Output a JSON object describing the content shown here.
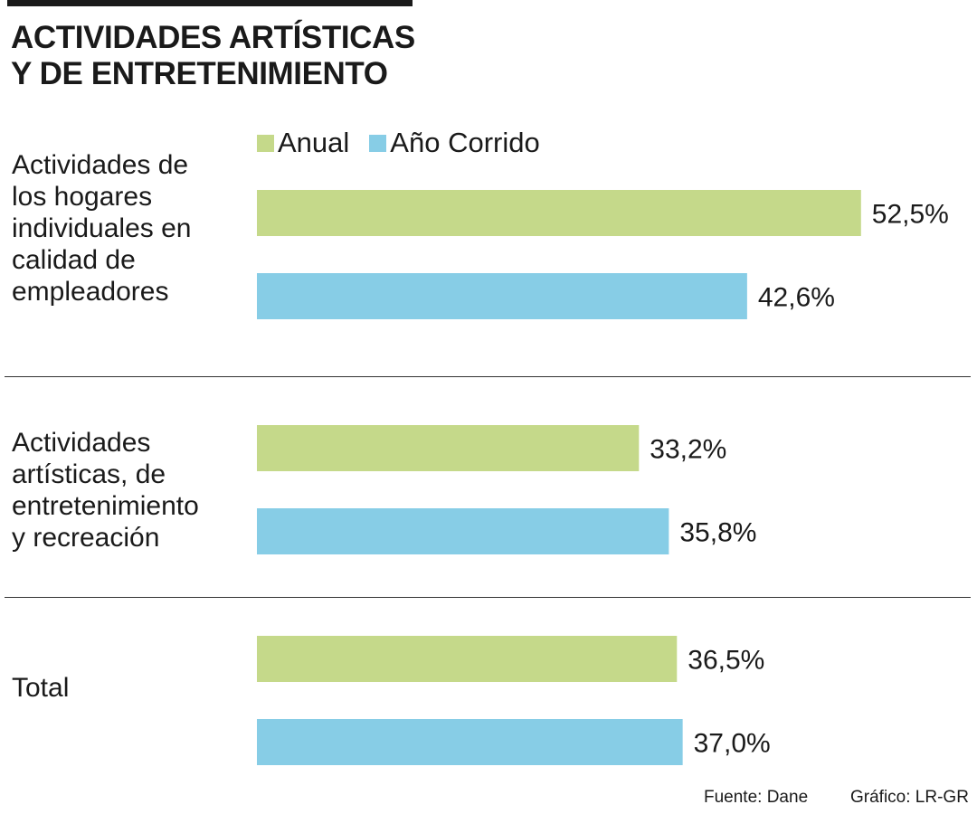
{
  "header": {
    "title_line1": "ACTIVIDADES ARTÍSTICAS",
    "title_line2": "Y DE ENTRETENIMIENTO"
  },
  "colors": {
    "anual": "#c5d98a",
    "ano_corrido": "#87cde6",
    "text": "#1a1a1a"
  },
  "chart_data": {
    "type": "bar",
    "orientation": "horizontal",
    "categories": [
      "Actividades de\nlos hogares\nindividuales en\ncalidad de\nempleadores",
      "Actividades\nartísticas, de\nentretenimiento\ny recreación",
      "Total"
    ],
    "series": [
      {
        "name": "Anual",
        "values": [
          52.5,
          33.2,
          36.5
        ]
      },
      {
        "name": "Año Corrido",
        "values": [
          42.6,
          35.8,
          37.0
        ]
      }
    ],
    "value_labels": [
      [
        "52,5%",
        "42,6%"
      ],
      [
        "33,2%",
        "35,8%"
      ],
      [
        "36,5%",
        "37,0%"
      ]
    ],
    "legend_position": "top",
    "grid": false,
    "xlim": [
      0,
      60
    ]
  },
  "footer": {
    "source": "Fuente: Dane",
    "credit": "Gráfico: LR-GR"
  }
}
